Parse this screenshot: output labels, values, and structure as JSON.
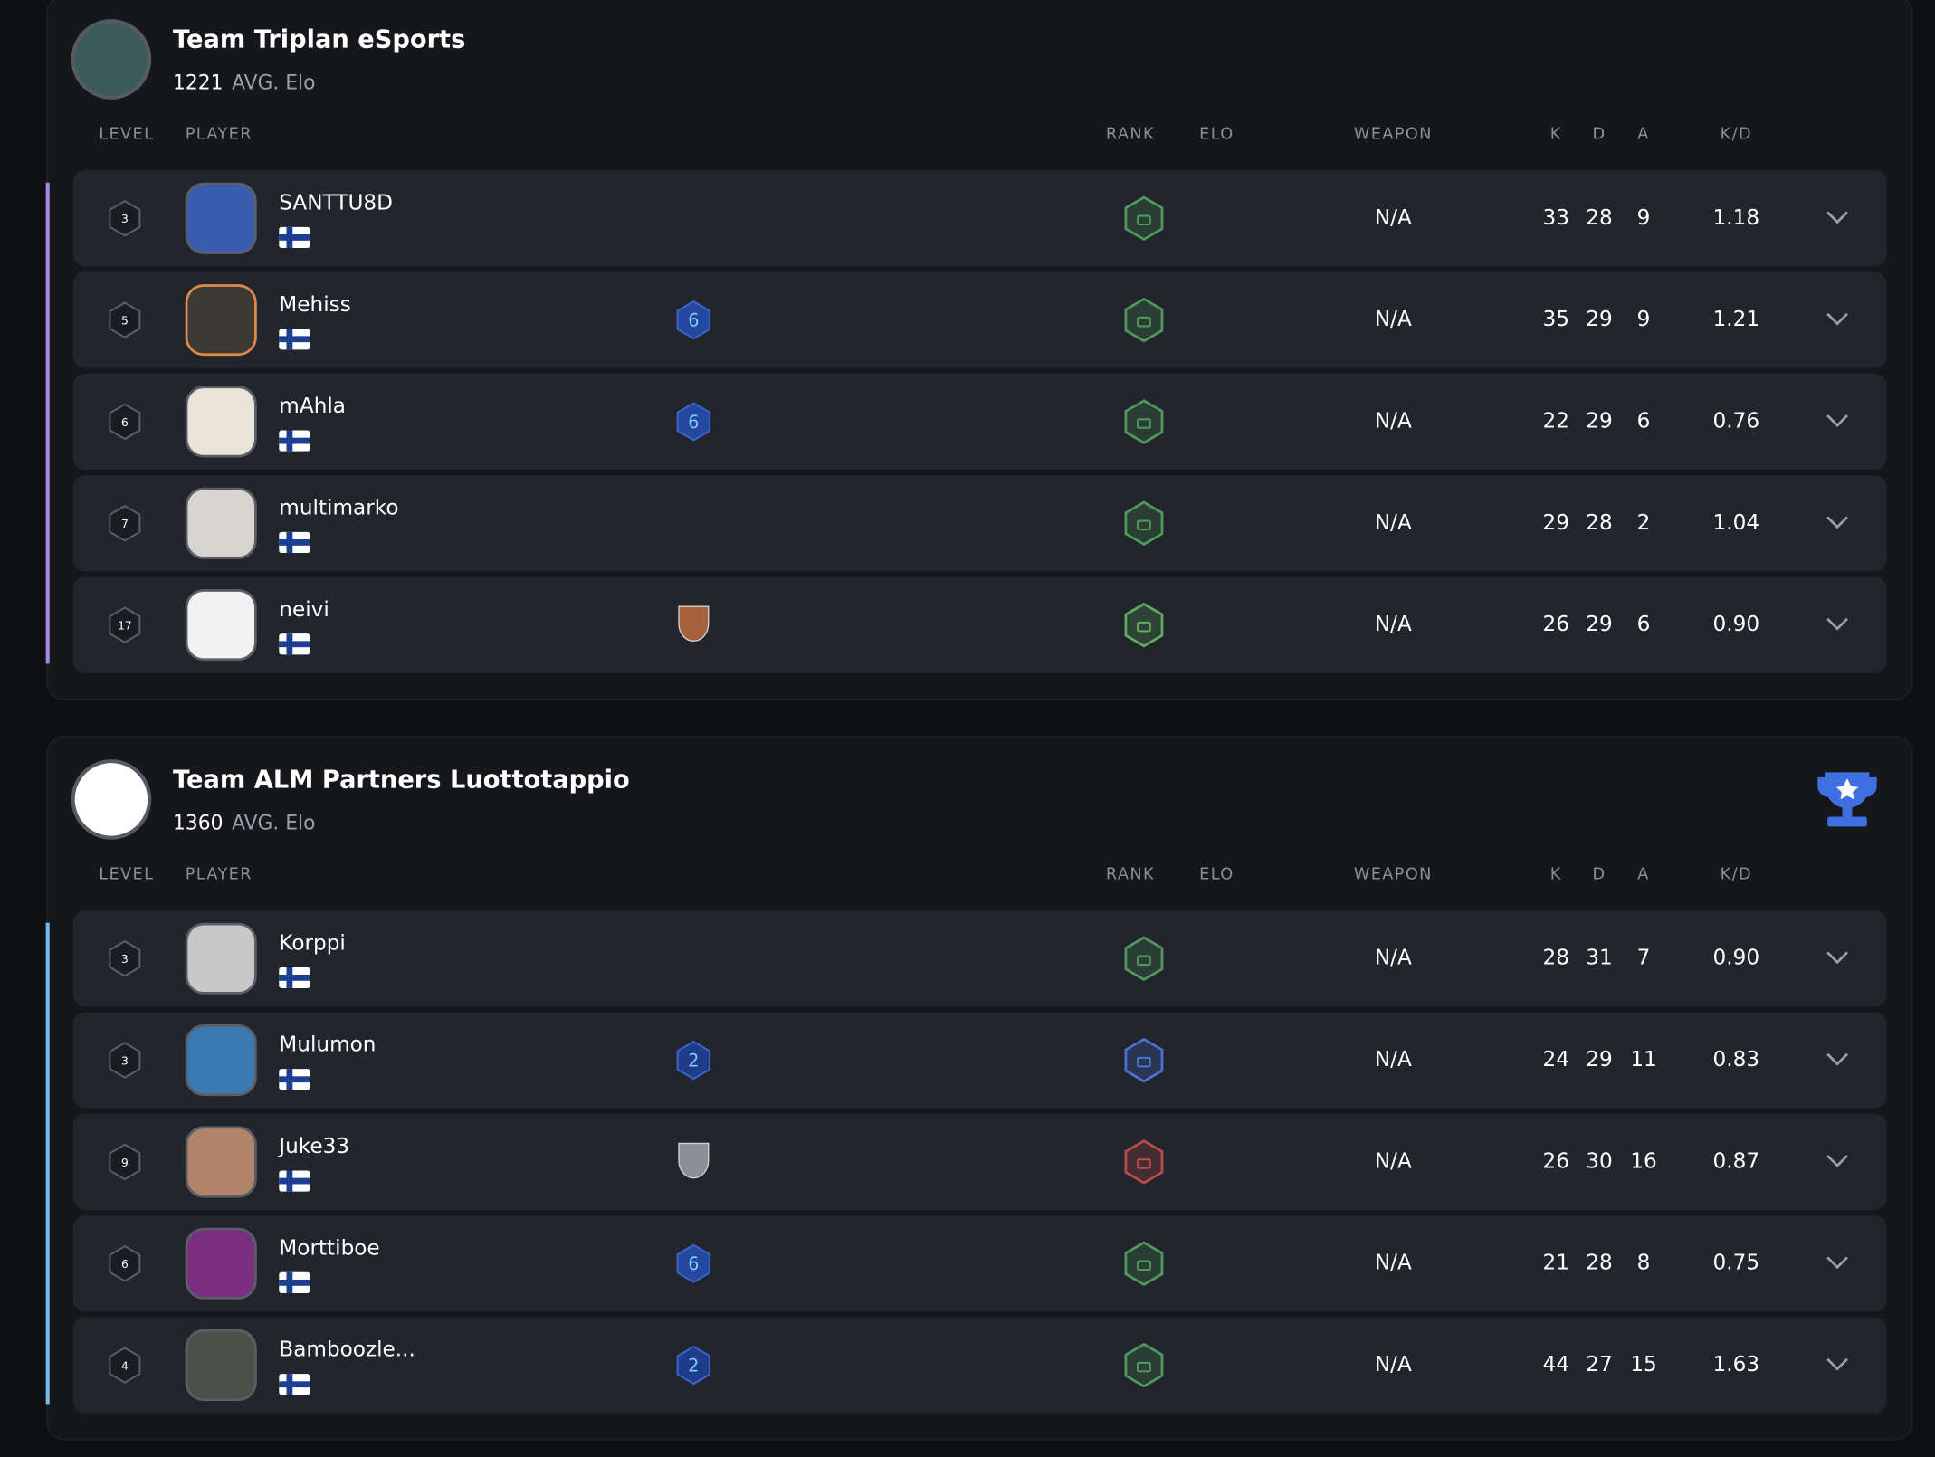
{
  "columns": {
    "level": "LEVEL",
    "player": "PLAYER",
    "rank": "RANK",
    "elo": "ELO",
    "weapon": "WEAPON",
    "k": "K",
    "d": "D",
    "a": "A",
    "kd": "K/D"
  },
  "teams": [
    {
      "name": "Team Triplan eSports",
      "avg_elo": "1221",
      "avg_elo_label": "AVG. Elo",
      "accent": "#a58be0",
      "winner": false,
      "players": [
        {
          "level": "3",
          "name": "SANTTU8D",
          "weapon": "N/A",
          "k": "33",
          "d": "28",
          "a": "9",
          "kd": "1.18",
          "rank_color": "#4f9a5c",
          "avatar": "#3a5cb0"
        },
        {
          "level": "5",
          "name": "Mehiss",
          "weapon": "N/A",
          "k": "35",
          "d": "29",
          "a": "9",
          "kd": "1.21",
          "rank_color": "#4f9a5c",
          "avatar": "#3b3a35",
          "avatar_border": "#e08a4a",
          "badge": {
            "label": "6",
            "color": "#2447a0"
          }
        },
        {
          "level": "6",
          "name": "mAhla",
          "weapon": "N/A",
          "k": "22",
          "d": "29",
          "a": "6",
          "kd": "0.76",
          "rank_color": "#4f9a5c",
          "avatar": "#e8e4d8",
          "badge": {
            "label": "6",
            "color": "#2447a0"
          }
        },
        {
          "level": "7",
          "name": "multimarko",
          "weapon": "N/A",
          "k": "29",
          "d": "28",
          "a": "2",
          "kd": "1.04",
          "rank_color": "#4f9a5c",
          "avatar": "#d8d4d0"
        },
        {
          "level": "17",
          "name": "neivi",
          "weapon": "N/A",
          "k": "26",
          "d": "29",
          "a": "6",
          "kd": "0.90",
          "rank_color": "#5fae5a",
          "avatar": "#f2f2f2",
          "badge": {
            "shape": "shield",
            "color": "#a5623c"
          }
        }
      ]
    },
    {
      "name": "Team ALM Partners Luottotappio",
      "avg_elo": "1360",
      "avg_elo_label": "AVG. Elo",
      "accent": "#7ab8ea",
      "winner": true,
      "players": [
        {
          "level": "3",
          "name": "Korppi",
          "weapon": "N/A",
          "k": "28",
          "d": "31",
          "a": "7",
          "kd": "0.90",
          "rank_color": "#4f9a5c",
          "avatar": "#c8c8c8"
        },
        {
          "level": "3",
          "name": "Mulumon",
          "weapon": "N/A",
          "k": "24",
          "d": "29",
          "a": "11",
          "kd": "0.83",
          "rank_color": "#4a72d8",
          "avatar": "#3a7ab0",
          "badge": {
            "label": "2",
            "color": "#1f3c8a"
          }
        },
        {
          "level": "9",
          "name": "Juke33",
          "weapon": "N/A",
          "k": "26",
          "d": "30",
          "a": "16",
          "kd": "0.87",
          "rank_color": "#c0494c",
          "avatar": "#b08468",
          "badge": {
            "shape": "shield",
            "color": "#8a9098"
          }
        },
        {
          "level": "6",
          "name": "Morttiboe",
          "weapon": "N/A",
          "k": "21",
          "d": "28",
          "a": "8",
          "kd": "0.75",
          "rank_color": "#4f9a5c",
          "avatar": "#7a2f80",
          "badge": {
            "label": "6",
            "color": "#2447a0"
          }
        },
        {
          "level": "4",
          "name": "Bamboozle...",
          "weapon": "N/A",
          "k": "44",
          "d": "27",
          "a": "15",
          "kd": "1.63",
          "rank_color": "#4f9a5c",
          "avatar": "#4a5248",
          "badge": {
            "label": "2",
            "color": "#1f3c8a"
          }
        }
      ]
    }
  ]
}
